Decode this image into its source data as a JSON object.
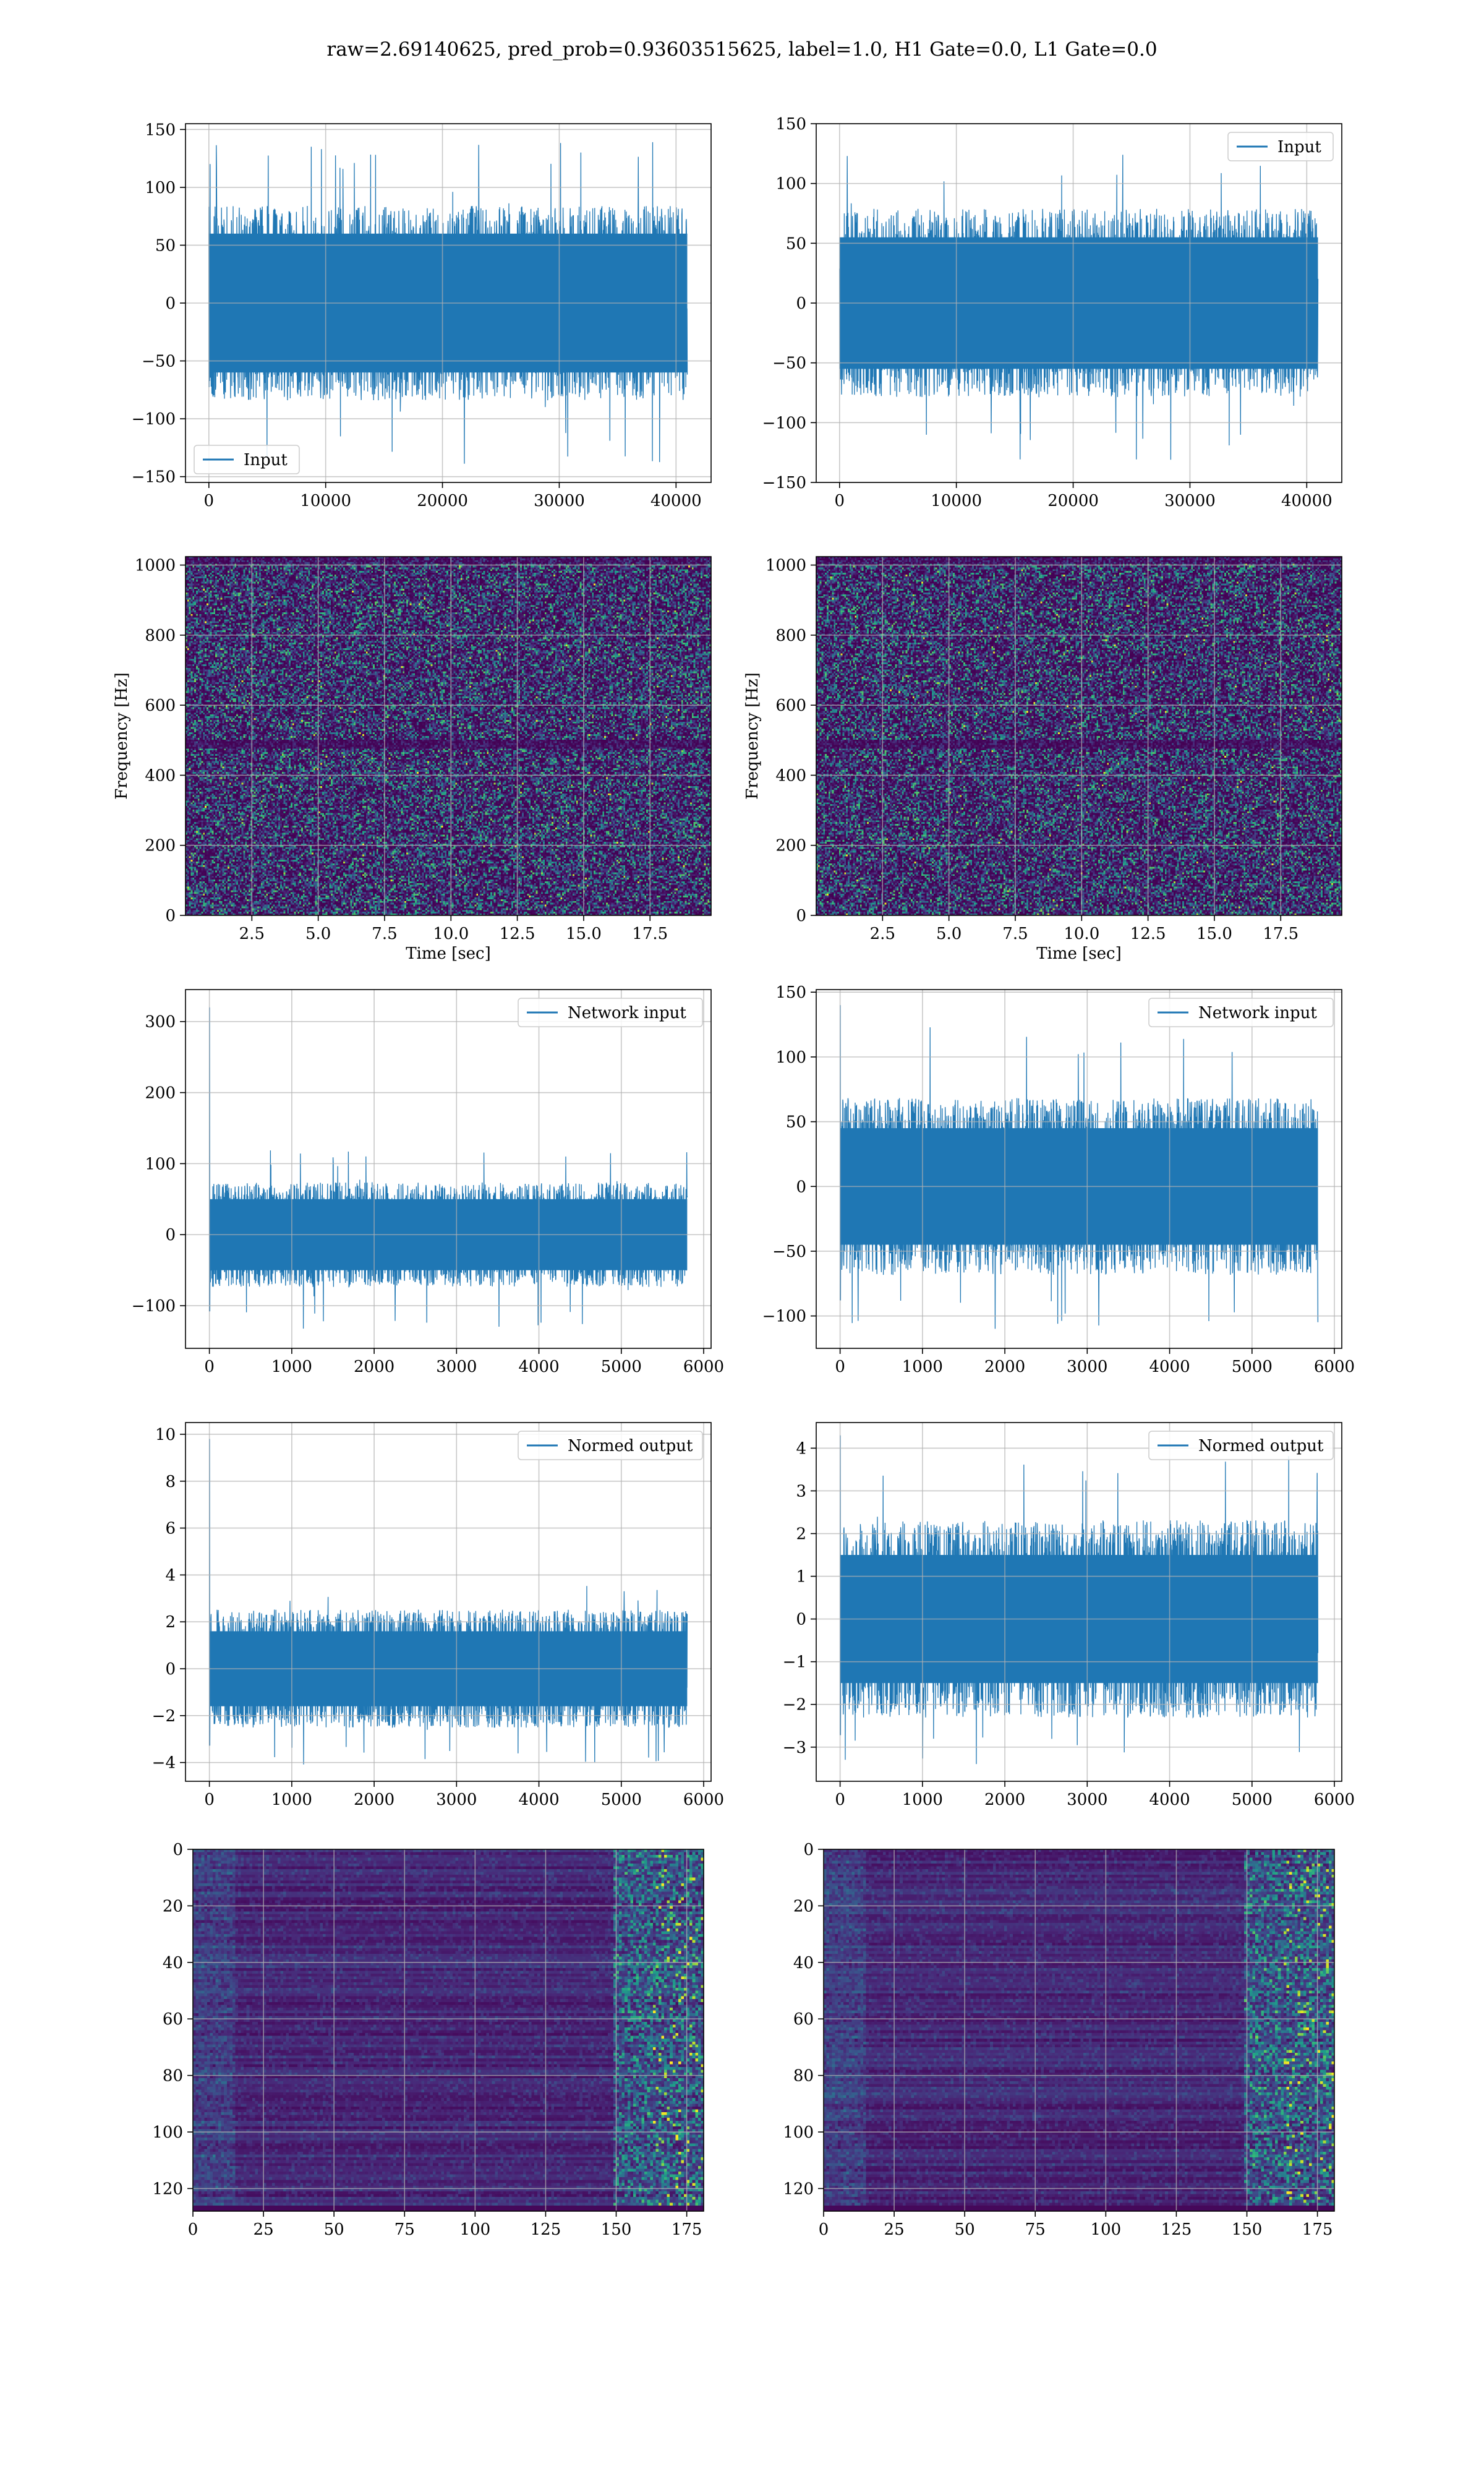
{
  "title": "raw=2.69140625, pred_prob=0.93603515625, label=1.0, H1 Gate=0.0, L1 Gate=0.0",
  "colors": {
    "line": "#1f77b4",
    "grid": "#b0b0b0",
    "viridis_dark": "#440154"
  },
  "chart_data": [
    {
      "id": "input-h1",
      "type": "line",
      "xlabel": "",
      "ylabel": "",
      "xlim": [
        -2000,
        43000
      ],
      "ylim": [
        -155,
        155
      ],
      "xticks": [
        "0",
        "10000",
        "20000",
        "30000",
        "40000"
      ],
      "xtick_values": [
        0,
        10000,
        20000,
        30000,
        40000
      ],
      "yticks": [
        "−150",
        "−100",
        "−50",
        "0",
        "50",
        "100",
        "150"
      ],
      "ytick_values": [
        -150,
        -100,
        -50,
        0,
        50,
        100,
        150
      ],
      "series": [
        {
          "name": "Input",
          "x_range": [
            0,
            40960
          ],
          "spread": 80,
          "peak_max": 140,
          "peak_min": -140,
          "band": 60
        }
      ],
      "legend": "lower-left",
      "grid": true
    },
    {
      "id": "input-l1",
      "type": "line",
      "xlabel": "",
      "ylabel": "",
      "xlim": [
        -2000,
        43000
      ],
      "ylim": [
        -150,
        150
      ],
      "xticks": [
        "0",
        "10000",
        "20000",
        "30000",
        "40000"
      ],
      "xtick_values": [
        0,
        10000,
        20000,
        30000,
        40000
      ],
      "yticks": [
        "−150",
        "−100",
        "−50",
        "0",
        "50",
        "100",
        "150"
      ],
      "ytick_values": [
        -150,
        -100,
        -50,
        0,
        50,
        100,
        150
      ],
      "series": [
        {
          "name": "Input",
          "x_range": [
            0,
            40960
          ],
          "spread": 75,
          "peak_max": 125,
          "peak_min": -135,
          "band": 55
        }
      ],
      "legend": "upper-right",
      "grid": true
    },
    {
      "id": "spec-h1",
      "type": "heatmap",
      "xlabel": "Time [sec]",
      "ylabel": "Frequency [Hz]",
      "xlim": [
        0,
        19.8
      ],
      "ylim": [
        0,
        1024
      ],
      "xticks": [
        "2.5",
        "5.0",
        "7.5",
        "10.0",
        "12.5",
        "15.0",
        "17.5"
      ],
      "xtick_values": [
        2.5,
        5.0,
        7.5,
        10.0,
        12.5,
        15.0,
        17.5
      ],
      "yticks": [
        "0",
        "200",
        "400",
        "600",
        "800",
        "1000"
      ],
      "ytick_values": [
        0,
        200,
        400,
        600,
        800,
        1000
      ],
      "colormap": "viridis",
      "grid": true
    },
    {
      "id": "spec-l1",
      "type": "heatmap",
      "xlabel": "Time [sec]",
      "ylabel": "Frequency [Hz]",
      "xlim": [
        0,
        19.8
      ],
      "ylim": [
        0,
        1024
      ],
      "xticks": [
        "2.5",
        "5.0",
        "7.5",
        "10.0",
        "12.5",
        "15.0",
        "17.5"
      ],
      "xtick_values": [
        2.5,
        5.0,
        7.5,
        10.0,
        12.5,
        15.0,
        17.5
      ],
      "yticks": [
        "0",
        "200",
        "400",
        "600",
        "800",
        "1000"
      ],
      "ytick_values": [
        0,
        200,
        400,
        600,
        800,
        1000
      ],
      "colormap": "viridis",
      "grid": true
    },
    {
      "id": "netin-h1",
      "type": "line",
      "xlabel": "",
      "ylabel": "",
      "xlim": [
        -290,
        6090
      ],
      "ylim": [
        -160,
        345
      ],
      "xticks": [
        "0",
        "1000",
        "2000",
        "3000",
        "4000",
        "5000",
        "6000"
      ],
      "xtick_values": [
        0,
        1000,
        2000,
        3000,
        4000,
        5000,
        6000
      ],
      "yticks": [
        "−100",
        "0",
        "100",
        "200",
        "300"
      ],
      "ytick_values": [
        -100,
        0,
        100,
        200,
        300
      ],
      "series": [
        {
          "name": "Network input",
          "x_range": [
            0,
            5800
          ],
          "spread": 70,
          "peak_max": 120,
          "peak_min": -135,
          "band": 50,
          "spike": 320
        }
      ],
      "legend": "upper-right",
      "grid": true
    },
    {
      "id": "netin-l1",
      "type": "line",
      "xlabel": "",
      "ylabel": "",
      "xlim": [
        -290,
        6090
      ],
      "ylim": [
        -125,
        152
      ],
      "xticks": [
        "0",
        "1000",
        "2000",
        "3000",
        "4000",
        "5000",
        "6000"
      ],
      "xtick_values": [
        0,
        1000,
        2000,
        3000,
        4000,
        5000,
        6000
      ],
      "yticks": [
        "−100",
        "−50",
        "0",
        "50",
        "100",
        "150"
      ],
      "ytick_values": [
        -100,
        -50,
        0,
        50,
        100,
        150
      ],
      "series": [
        {
          "name": "Network input",
          "x_range": [
            0,
            5800
          ],
          "spread": 65,
          "peak_max": 125,
          "peak_min": -110,
          "band": 45,
          "spike": 140
        }
      ],
      "legend": "upper-right",
      "grid": true
    },
    {
      "id": "normed-h1",
      "type": "line",
      "xlabel": "",
      "ylabel": "",
      "xlim": [
        -290,
        6090
      ],
      "ylim": [
        -4.8,
        10.5
      ],
      "xticks": [
        "0",
        "1000",
        "2000",
        "3000",
        "4000",
        "5000",
        "6000"
      ],
      "xtick_values": [
        0,
        1000,
        2000,
        3000,
        4000,
        5000,
        6000
      ],
      "yticks": [
        "−4",
        "−2",
        "0",
        "2",
        "4",
        "6",
        "8",
        "10"
      ],
      "ytick_values": [
        -4,
        -2,
        0,
        2,
        4,
        6,
        8,
        10
      ],
      "series": [
        {
          "name": "Normed output",
          "x_range": [
            0,
            5800
          ],
          "spread": 2.4,
          "peak_max": 3.6,
          "peak_min": -4.1,
          "band": 1.6,
          "spike": 9.8
        }
      ],
      "legend": "upper-right",
      "grid": true
    },
    {
      "id": "normed-l1",
      "type": "line",
      "xlabel": "",
      "ylabel": "",
      "xlim": [
        -290,
        6090
      ],
      "ylim": [
        -3.8,
        4.6
      ],
      "xticks": [
        "0",
        "1000",
        "2000",
        "3000",
        "4000",
        "5000",
        "6000"
      ],
      "xtick_values": [
        0,
        1000,
        2000,
        3000,
        4000,
        5000,
        6000
      ],
      "yticks": [
        "−3",
        "−2",
        "−1",
        "0",
        "1",
        "2",
        "3",
        "4"
      ],
      "ytick_values": [
        -3,
        -2,
        -1,
        0,
        1,
        2,
        3,
        4
      ],
      "series": [
        {
          "name": "Normed output",
          "x_range": [
            0,
            5800
          ],
          "spread": 2.2,
          "peak_max": 3.9,
          "peak_min": -3.4,
          "band": 1.5,
          "spike": 4.3
        }
      ],
      "legend": "upper-right",
      "grid": true
    },
    {
      "id": "feat-h1",
      "type": "heatmap",
      "xlabel": "",
      "ylabel": "",
      "xlim": [
        0,
        181
      ],
      "ylim": [
        128,
        0
      ],
      "xticks": [
        "0",
        "25",
        "50",
        "75",
        "100",
        "125",
        "150",
        "175"
      ],
      "xtick_values": [
        0,
        25,
        50,
        75,
        100,
        125,
        150,
        175
      ],
      "yticks": [
        "0",
        "20",
        "40",
        "60",
        "80",
        "100",
        "120"
      ],
      "ytick_values": [
        0,
        20,
        40,
        60,
        80,
        100,
        120
      ],
      "colormap": "viridis",
      "grid": true
    },
    {
      "id": "feat-l1",
      "type": "heatmap",
      "xlabel": "",
      "ylabel": "",
      "xlim": [
        0,
        181
      ],
      "ylim": [
        128,
        0
      ],
      "xticks": [
        "0",
        "25",
        "50",
        "75",
        "100",
        "125",
        "150",
        "175"
      ],
      "xtick_values": [
        0,
        25,
        50,
        75,
        100,
        125,
        150,
        175
      ],
      "yticks": [
        "0",
        "20",
        "40",
        "60",
        "80",
        "100",
        "120"
      ],
      "ytick_values": [
        0,
        20,
        40,
        60,
        80,
        100,
        120
      ],
      "colormap": "viridis",
      "grid": true
    }
  ]
}
